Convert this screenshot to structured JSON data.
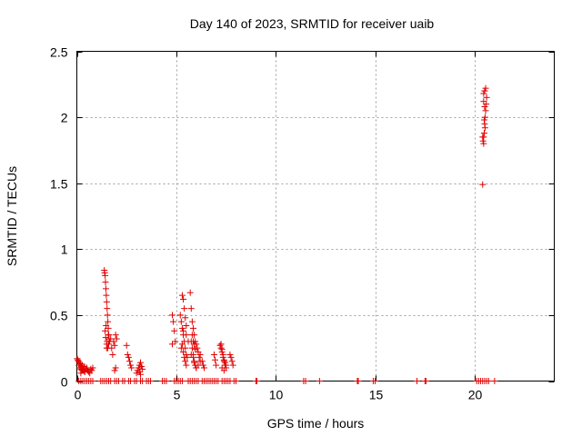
{
  "chart_data": {
    "type": "scatter",
    "title": "Day 140 of 2023, SRMTID for receiver uaib",
    "xlabel": "GPS time / hours",
    "ylabel": "SRMTID / TECUs",
    "xlim": [
      0,
      24
    ],
    "ylim": [
      0,
      2.5
    ],
    "xticks": [
      0,
      5,
      10,
      15,
      20
    ],
    "xtick_labels": [
      "0",
      "5",
      "10",
      "15",
      "20"
    ],
    "yticks": [
      0,
      0.5,
      1,
      1.5,
      2,
      2.5
    ],
    "ytick_labels": [
      "0",
      "0.5",
      "1",
      "1.5",
      "2",
      "2.5"
    ],
    "grid": true,
    "marker": "+",
    "color": "#e00000",
    "series": [
      {
        "name": "SRMTID",
        "x": [
          0.02,
          0.05,
          0.08,
          0.1,
          0.13,
          0.15,
          0.18,
          0.2,
          0.23,
          0.25,
          0.28,
          0.3,
          0.33,
          0.35,
          0.38,
          0.4,
          0.45,
          0.5,
          0.55,
          0.6,
          0.65,
          0.7,
          0.75,
          0.8,
          0.2,
          0.3,
          0.4,
          0.5,
          1.38,
          1.4,
          1.42,
          1.44,
          1.46,
          1.48,
          1.5,
          1.52,
          1.54,
          1.56,
          1.58,
          1.6,
          1.62,
          1.64,
          1.42,
          1.45,
          1.5,
          1.55,
          1.47,
          1.52,
          1.58,
          1.5,
          1.6,
          1.65,
          1.7,
          1.75,
          1.8,
          1.85,
          1.9,
          1.95,
          2.0,
          1.9,
          1.95,
          2.5,
          2.55,
          2.6,
          2.65,
          2.7,
          2.75,
          3.0,
          3.05,
          3.1,
          3.15,
          3.2,
          3.25,
          3.3,
          3.15,
          3.2,
          4.8,
          4.85,
          4.9,
          4.95,
          4.8,
          5.2,
          5.25,
          5.3,
          5.35,
          5.4,
          5.45,
          5.5,
          5.55,
          5.3,
          5.35,
          5.4,
          5.45,
          5.5,
          5.35,
          5.5,
          5.6,
          5.25,
          5.3,
          5.35,
          5.4,
          5.45,
          5.5,
          5.7,
          5.75,
          5.8,
          5.85,
          5.9,
          5.95,
          6.0,
          6.05,
          6.1,
          6.15,
          6.2,
          5.75,
          5.8,
          5.85,
          5.9,
          5.95,
          6.0,
          5.8,
          5.85,
          5.9,
          5.95,
          5.75,
          5.85,
          5.9,
          6.0,
          6.1,
          6.2,
          6.3,
          6.35,
          6.4,
          6.9,
          6.95,
          7.0,
          7.2,
          7.25,
          7.3,
          7.35,
          7.4,
          7.45,
          7.5,
          7.25,
          7.3,
          7.35,
          7.4,
          7.45,
          7.5,
          7.3,
          7.4,
          7.7,
          7.75,
          7.8,
          7.85,
          20.4,
          20.42,
          20.45,
          20.48,
          20.5,
          20.52,
          20.55,
          20.58,
          20.6,
          20.45,
          20.5,
          20.55,
          20.45,
          20.5,
          20.48,
          20.52,
          20.4,
          20.45,
          20.5,
          0.1,
          0.2,
          0.3,
          0.4,
          0.5,
          0.6,
          0.7,
          0.8,
          1.2,
          1.3,
          1.4,
          1.5,
          1.6,
          1.7,
          1.9,
          2.0,
          2.1,
          2.3,
          2.4,
          2.6,
          2.7,
          2.9,
          3.0,
          3.2,
          3.3,
          3.5,
          3.6,
          3.7,
          4.3,
          4.4,
          4.5,
          4.9,
          5.0,
          5.1,
          5.2,
          5.3,
          5.6,
          5.7,
          5.8,
          5.9,
          6.0,
          6.1,
          6.3,
          6.4,
          6.5,
          6.6,
          6.7,
          6.8,
          6.9,
          7.0,
          7.1,
          7.3,
          7.4,
          7.5,
          7.6,
          7.7,
          7.9,
          8.0,
          9.0,
          9.05,
          11.4,
          11.5,
          12.2,
          14.1,
          14.15,
          14.9,
          15.0,
          17.1,
          17.5,
          17.55,
          20.1,
          20.2,
          20.3,
          20.4,
          20.5,
          20.6,
          20.7,
          21.0
        ],
        "y": [
          0.17,
          0.16,
          0.15,
          0.12,
          0.14,
          0.1,
          0.13,
          0.09,
          0.11,
          0.08,
          0.12,
          0.1,
          0.09,
          0.08,
          0.11,
          0.07,
          0.09,
          0.1,
          0.08,
          0.07,
          0.06,
          0.09,
          0.08,
          0.1,
          0.06,
          0.08,
          0.07,
          0.09,
          0.84,
          0.82,
          0.8,
          0.75,
          0.7,
          0.65,
          0.6,
          0.55,
          0.5,
          0.45,
          0.4,
          0.35,
          0.32,
          0.3,
          0.38,
          0.33,
          0.28,
          0.25,
          0.42,
          0.3,
          0.35,
          0.25,
          0.28,
          0.3,
          0.32,
          0.25,
          0.2,
          0.3,
          0.27,
          0.35,
          0.32,
          0.08,
          0.1,
          0.27,
          0.2,
          0.18,
          0.15,
          0.12,
          0.1,
          0.06,
          0.08,
          0.1,
          0.12,
          0.14,
          0.11,
          0.09,
          0.07,
          0.05,
          0.5,
          0.45,
          0.38,
          0.3,
          0.28,
          0.5,
          0.45,
          0.4,
          0.35,
          0.3,
          0.25,
          0.2,
          0.18,
          0.65,
          0.62,
          0.55,
          0.48,
          0.42,
          0.38,
          0.35,
          0.3,
          0.25,
          0.28,
          0.22,
          0.18,
          0.15,
          0.12,
          0.67,
          0.55,
          0.45,
          0.4,
          0.35,
          0.3,
          0.28,
          0.25,
          0.22,
          0.18,
          0.15,
          0.3,
          0.25,
          0.2,
          0.15,
          0.12,
          0.1,
          0.35,
          0.3,
          0.28,
          0.24,
          0.2,
          0.18,
          0.14,
          0.1,
          0.12,
          0.2,
          0.15,
          0.12,
          0.1,
          0.2,
          0.16,
          0.12,
          0.27,
          0.25,
          0.22,
          0.18,
          0.15,
          0.12,
          0.1,
          0.28,
          0.24,
          0.2,
          0.16,
          0.14,
          0.12,
          0.1,
          0.08,
          0.2,
          0.18,
          0.15,
          0.12,
          1.49,
          1.82,
          1.85,
          1.88,
          1.95,
          2.0,
          2.05,
          2.1,
          2.15,
          2.18,
          2.2,
          2.22,
          2.12,
          2.08,
          1.98,
          1.92,
          1.85,
          1.8,
          2.2,
          0,
          0,
          0,
          0,
          0,
          0,
          0,
          0,
          0,
          0,
          0,
          0,
          0,
          0,
          0,
          0,
          0,
          0,
          0,
          0,
          0,
          0,
          0,
          0,
          0,
          0,
          0,
          0,
          0,
          0,
          0,
          0,
          0,
          0,
          0,
          0,
          0,
          0,
          0,
          0,
          0,
          0,
          0,
          0,
          0,
          0,
          0,
          0,
          0,
          0,
          0,
          0,
          0,
          0,
          0,
          0,
          0,
          0,
          0,
          0,
          0,
          0,
          0,
          0,
          0,
          0,
          0,
          0,
          0,
          0,
          0,
          0,
          0,
          0,
          0,
          0,
          0,
          0
        ]
      }
    ]
  }
}
